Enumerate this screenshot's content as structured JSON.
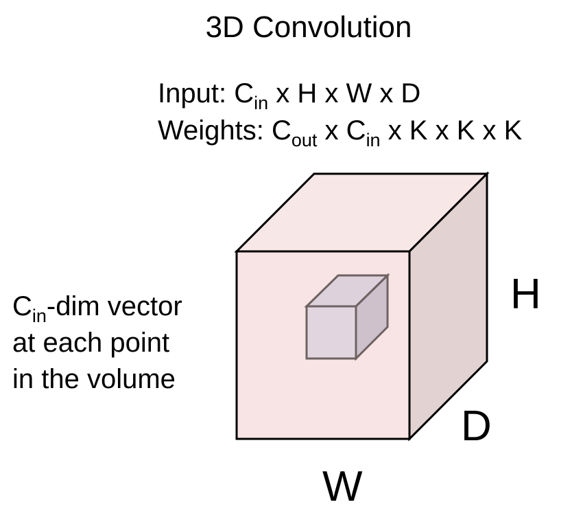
{
  "diagram": {
    "title": "3D Convolution",
    "input": {
      "prefix": "Input: ",
      "c_symbol": "C",
      "c_subscript": "in",
      "rest": " x H x W x D"
    },
    "weights": {
      "prefix": "Weights: ",
      "cout_symbol": "C",
      "cout_subscript": "out",
      "middle": " x ",
      "cin_symbol": "C",
      "cin_subscript": "in",
      "rest": " x K x K x K"
    },
    "note": {
      "c_symbol": "C",
      "c_subscript": "in",
      "line1_rest": "-dim vector",
      "line2": "at each point",
      "line3": "in the volume"
    },
    "axes": {
      "height": "H",
      "depth": "D",
      "width": "W"
    },
    "colors": {
      "cube_front": "#f8e4e4",
      "cube_top": "#f7e7e7",
      "cube_side": "#e2d2d2",
      "cube_outline": "#000000",
      "kernel_front": "#e1d5e0",
      "kernel_top": "#ddd2dc",
      "kernel_side": "#cfc1cc",
      "kernel_outline": "#6e6262"
    }
  }
}
